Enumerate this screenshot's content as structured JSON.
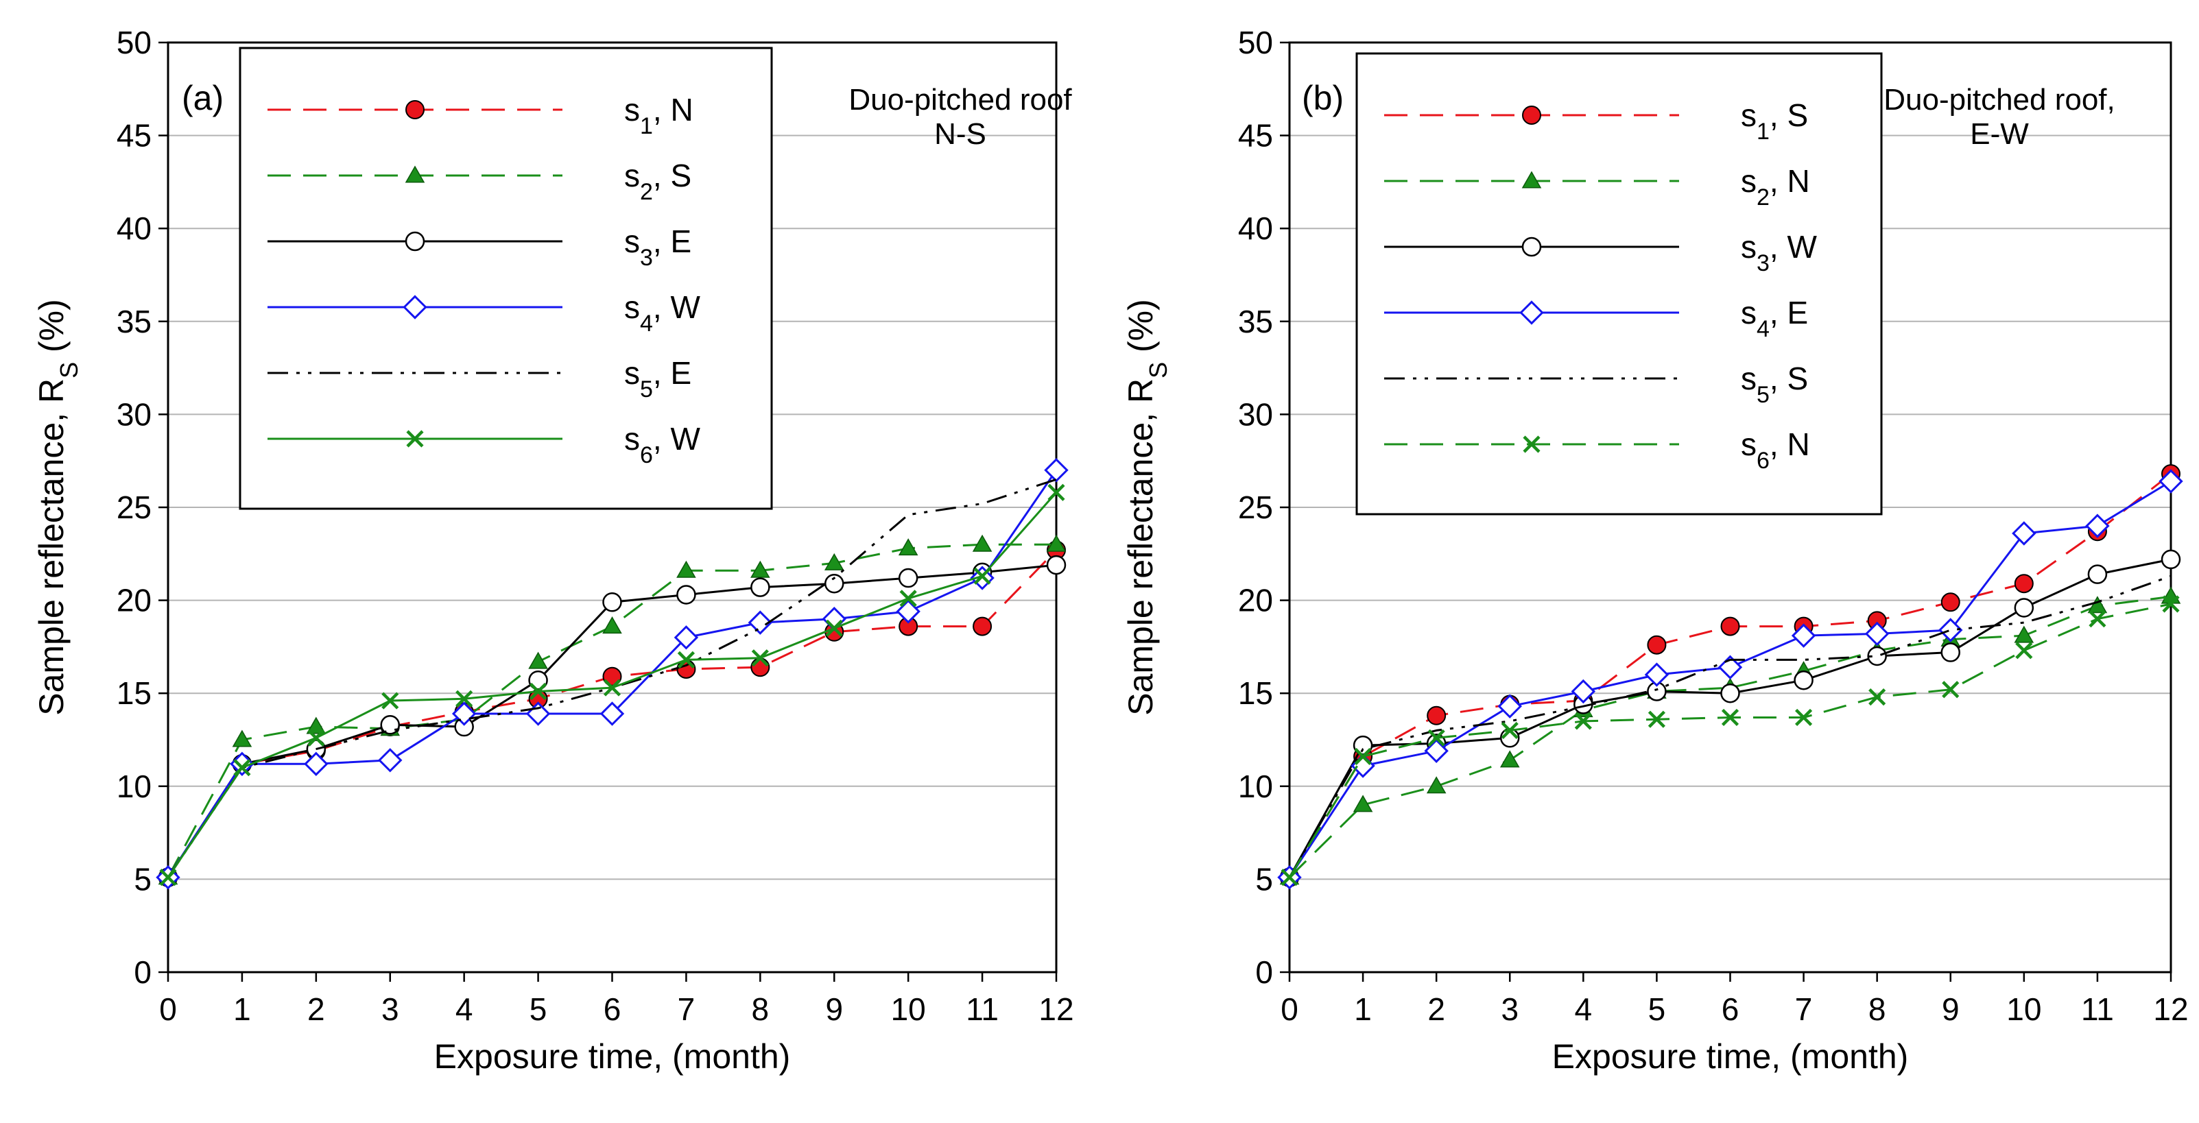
{
  "chart_data": [
    {
      "panel": "(a)",
      "type": "line",
      "annotation_lines": [
        "Duo-pitched roof",
        "N-S"
      ],
      "xlabel": "Exposure time, (month)",
      "ylabel_prefix": "Sample reflectance, R",
      "ylabel_sub": "S",
      "ylabel_suffix": " (%)",
      "xlim": [
        0,
        12
      ],
      "ylim": [
        0,
        50
      ],
      "xticks": [
        "0",
        "1",
        "2",
        "3",
        "4",
        "5",
        "6",
        "7",
        "8",
        "9",
        "10",
        "11",
        "12"
      ],
      "yticks": [
        "0",
        "5",
        "10",
        "15",
        "20",
        "25",
        "30",
        "35",
        "40",
        "45",
        "50"
      ],
      "grid": "horizontal",
      "legend_position": "top-left",
      "x": [
        0,
        1,
        2,
        3,
        4,
        5,
        6,
        7,
        8,
        9,
        10,
        11,
        12
      ],
      "series": [
        {
          "name": "s",
          "sub": "1",
          "suffix": ", N",
          "color": "#e8141b",
          "dash": "dash",
          "marker": "circle-filled",
          "values": [
            5.1,
            11.2,
            11.9,
            13.2,
            14.0,
            14.7,
            15.9,
            16.3,
            16.4,
            18.3,
            18.6,
            18.6,
            22.7
          ]
        },
        {
          "name": "s",
          "sub": "2",
          "suffix": ", S",
          "color": "#1a8f1a",
          "dash": "dash",
          "marker": "triangle-filled",
          "values": [
            5.1,
            12.5,
            13.2,
            13.1,
            13.6,
            16.7,
            18.6,
            21.6,
            21.6,
            22.0,
            22.8,
            23.0,
            23.0
          ]
        },
        {
          "name": "s",
          "sub": "3",
          "suffix": ", E",
          "color": "#000000",
          "dash": "solid",
          "marker": "circle-open",
          "values": [
            5.1,
            11.2,
            12.0,
            13.3,
            13.2,
            15.7,
            19.9,
            20.3,
            20.7,
            20.9,
            21.2,
            21.5,
            21.9
          ]
        },
        {
          "name": "s",
          "sub": "4",
          "suffix": ", W",
          "color": "#1515f0",
          "dash": "solid",
          "marker": "diamond-open",
          "values": [
            5.1,
            11.2,
            11.2,
            11.4,
            13.9,
            13.9,
            13.9,
            18.0,
            18.8,
            19.0,
            19.4,
            21.2,
            27.0
          ]
        },
        {
          "name": "s",
          "sub": "5",
          "suffix": ", E",
          "color": "#000000",
          "dash": "dashdotdot",
          "marker": "none",
          "values": [
            5.1,
            11.0,
            12.0,
            13.0,
            13.6,
            14.2,
            15.3,
            16.5,
            18.5,
            21.2,
            24.6,
            25.2,
            26.5
          ]
        },
        {
          "name": "s",
          "sub": "6",
          "suffix": ", W",
          "color": "#1a8f1a",
          "dash": "solid",
          "marker": "x",
          "values": [
            5.1,
            11.0,
            12.6,
            14.6,
            14.7,
            15.1,
            15.3,
            16.8,
            16.9,
            18.5,
            20.1,
            21.3,
            25.8
          ]
        }
      ]
    },
    {
      "panel": "(b)",
      "type": "line",
      "annotation_lines": [
        "Duo-pitched roof,",
        "E-W"
      ],
      "xlabel": "Exposure time, (month)",
      "ylabel_prefix": "Sample reflectance, R",
      "ylabel_sub": "S",
      "ylabel_suffix": " (%)",
      "xlim": [
        0,
        12
      ],
      "ylim": [
        0,
        50
      ],
      "xticks": [
        "0",
        "1",
        "2",
        "3",
        "4",
        "5",
        "6",
        "7",
        "8",
        "9",
        "10",
        "11",
        "12"
      ],
      "yticks": [
        "0",
        "5",
        "10",
        "15",
        "20",
        "25",
        "30",
        "35",
        "40",
        "45",
        "50"
      ],
      "grid": "horizontal",
      "legend_position": "top-left",
      "x": [
        0,
        1,
        2,
        3,
        4,
        5,
        6,
        7,
        8,
        9,
        10,
        11,
        12
      ],
      "series": [
        {
          "name": "s",
          "sub": "1",
          "suffix": ", S",
          "color": "#e8141b",
          "dash": "dash",
          "marker": "circle-filled",
          "values": [
            5.1,
            11.6,
            13.8,
            14.4,
            14.6,
            17.6,
            18.6,
            18.6,
            18.9,
            19.9,
            20.9,
            23.7,
            26.8
          ]
        },
        {
          "name": "s",
          "sub": "2",
          "suffix": ", N",
          "color": "#1a8f1a",
          "dash": "dash",
          "marker": "triangle-filled",
          "values": [
            5.1,
            9.0,
            10.0,
            11.4,
            14.1,
            15.1,
            15.3,
            16.2,
            17.3,
            17.9,
            18.1,
            19.7,
            20.2
          ]
        },
        {
          "name": "s",
          "sub": "3",
          "suffix": ", W",
          "color": "#000000",
          "dash": "solid",
          "marker": "circle-open",
          "values": [
            5.1,
            12.2,
            12.3,
            12.6,
            14.4,
            15.1,
            15.0,
            15.7,
            17.0,
            17.2,
            19.6,
            21.4,
            22.2
          ]
        },
        {
          "name": "s",
          "sub": "4",
          "suffix": ", E",
          "color": "#1515f0",
          "dash": "solid",
          "marker": "diamond-open",
          "values": [
            5.1,
            11.1,
            11.9,
            14.3,
            15.1,
            16.0,
            16.4,
            18.1,
            18.2,
            18.4,
            23.6,
            24.0,
            26.4
          ]
        },
        {
          "name": "s",
          "sub": "5",
          "suffix": ", S",
          "color": "#000000",
          "dash": "dashdotdot",
          "marker": "none",
          "values": [
            5.1,
            12.0,
            13.0,
            13.5,
            14.3,
            15.2,
            16.8,
            16.8,
            17.0,
            18.4,
            18.8,
            19.9,
            21.3
          ]
        },
        {
          "name": "s",
          "sub": "6",
          "suffix": ", N",
          "color": "#1a8f1a",
          "dash": "dash",
          "marker": "x",
          "values": [
            5.1,
            11.6,
            12.6,
            13.0,
            13.5,
            13.6,
            13.7,
            13.7,
            14.8,
            15.2,
            17.3,
            19.0,
            19.8
          ]
        }
      ]
    }
  ]
}
